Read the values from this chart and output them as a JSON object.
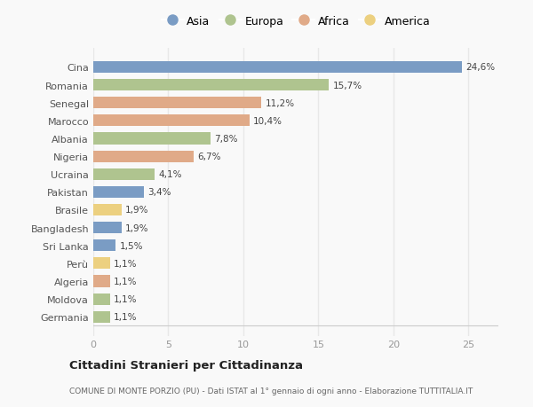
{
  "countries": [
    "Germania",
    "Moldova",
    "Algeria",
    "Perù",
    "Sri Lanka",
    "Bangladesh",
    "Brasile",
    "Pakistan",
    "Ucraina",
    "Nigeria",
    "Albania",
    "Marocco",
    "Senegal",
    "Romania",
    "Cina"
  ],
  "values": [
    1.1,
    1.1,
    1.1,
    1.1,
    1.5,
    1.9,
    1.9,
    3.4,
    4.1,
    6.7,
    7.8,
    10.4,
    11.2,
    15.7,
    24.6
  ],
  "continents": [
    "Europa",
    "Europa",
    "Africa",
    "America",
    "Asia",
    "Asia",
    "America",
    "Asia",
    "Europa",
    "Africa",
    "Europa",
    "Africa",
    "Africa",
    "Europa",
    "Asia"
  ],
  "labels": [
    "1,1%",
    "1,1%",
    "1,1%",
    "1,1%",
    "1,5%",
    "1,9%",
    "1,9%",
    "3,4%",
    "4,1%",
    "6,7%",
    "7,8%",
    "10,4%",
    "11,2%",
    "15,7%",
    "24,6%"
  ],
  "colors": {
    "Asia": "#7a9cc4",
    "Europa": "#afc48f",
    "Africa": "#e0aa88",
    "America": "#ecd080"
  },
  "legend_order": [
    "Asia",
    "Europa",
    "Africa",
    "America"
  ],
  "title": "Cittadini Stranieri per Cittadinanza",
  "subtitle": "COMUNE DI MONTE PORZIO (PU) - Dati ISTAT al 1° gennaio di ogni anno - Elaborazione TUTTITALIA.IT",
  "xlim": [
    0,
    27
  ],
  "xticks": [
    0,
    5,
    10,
    15,
    20,
    25
  ],
  "background_color": "#f9f9f9",
  "grid_color": "#e8e8e8",
  "bar_height": 0.65
}
